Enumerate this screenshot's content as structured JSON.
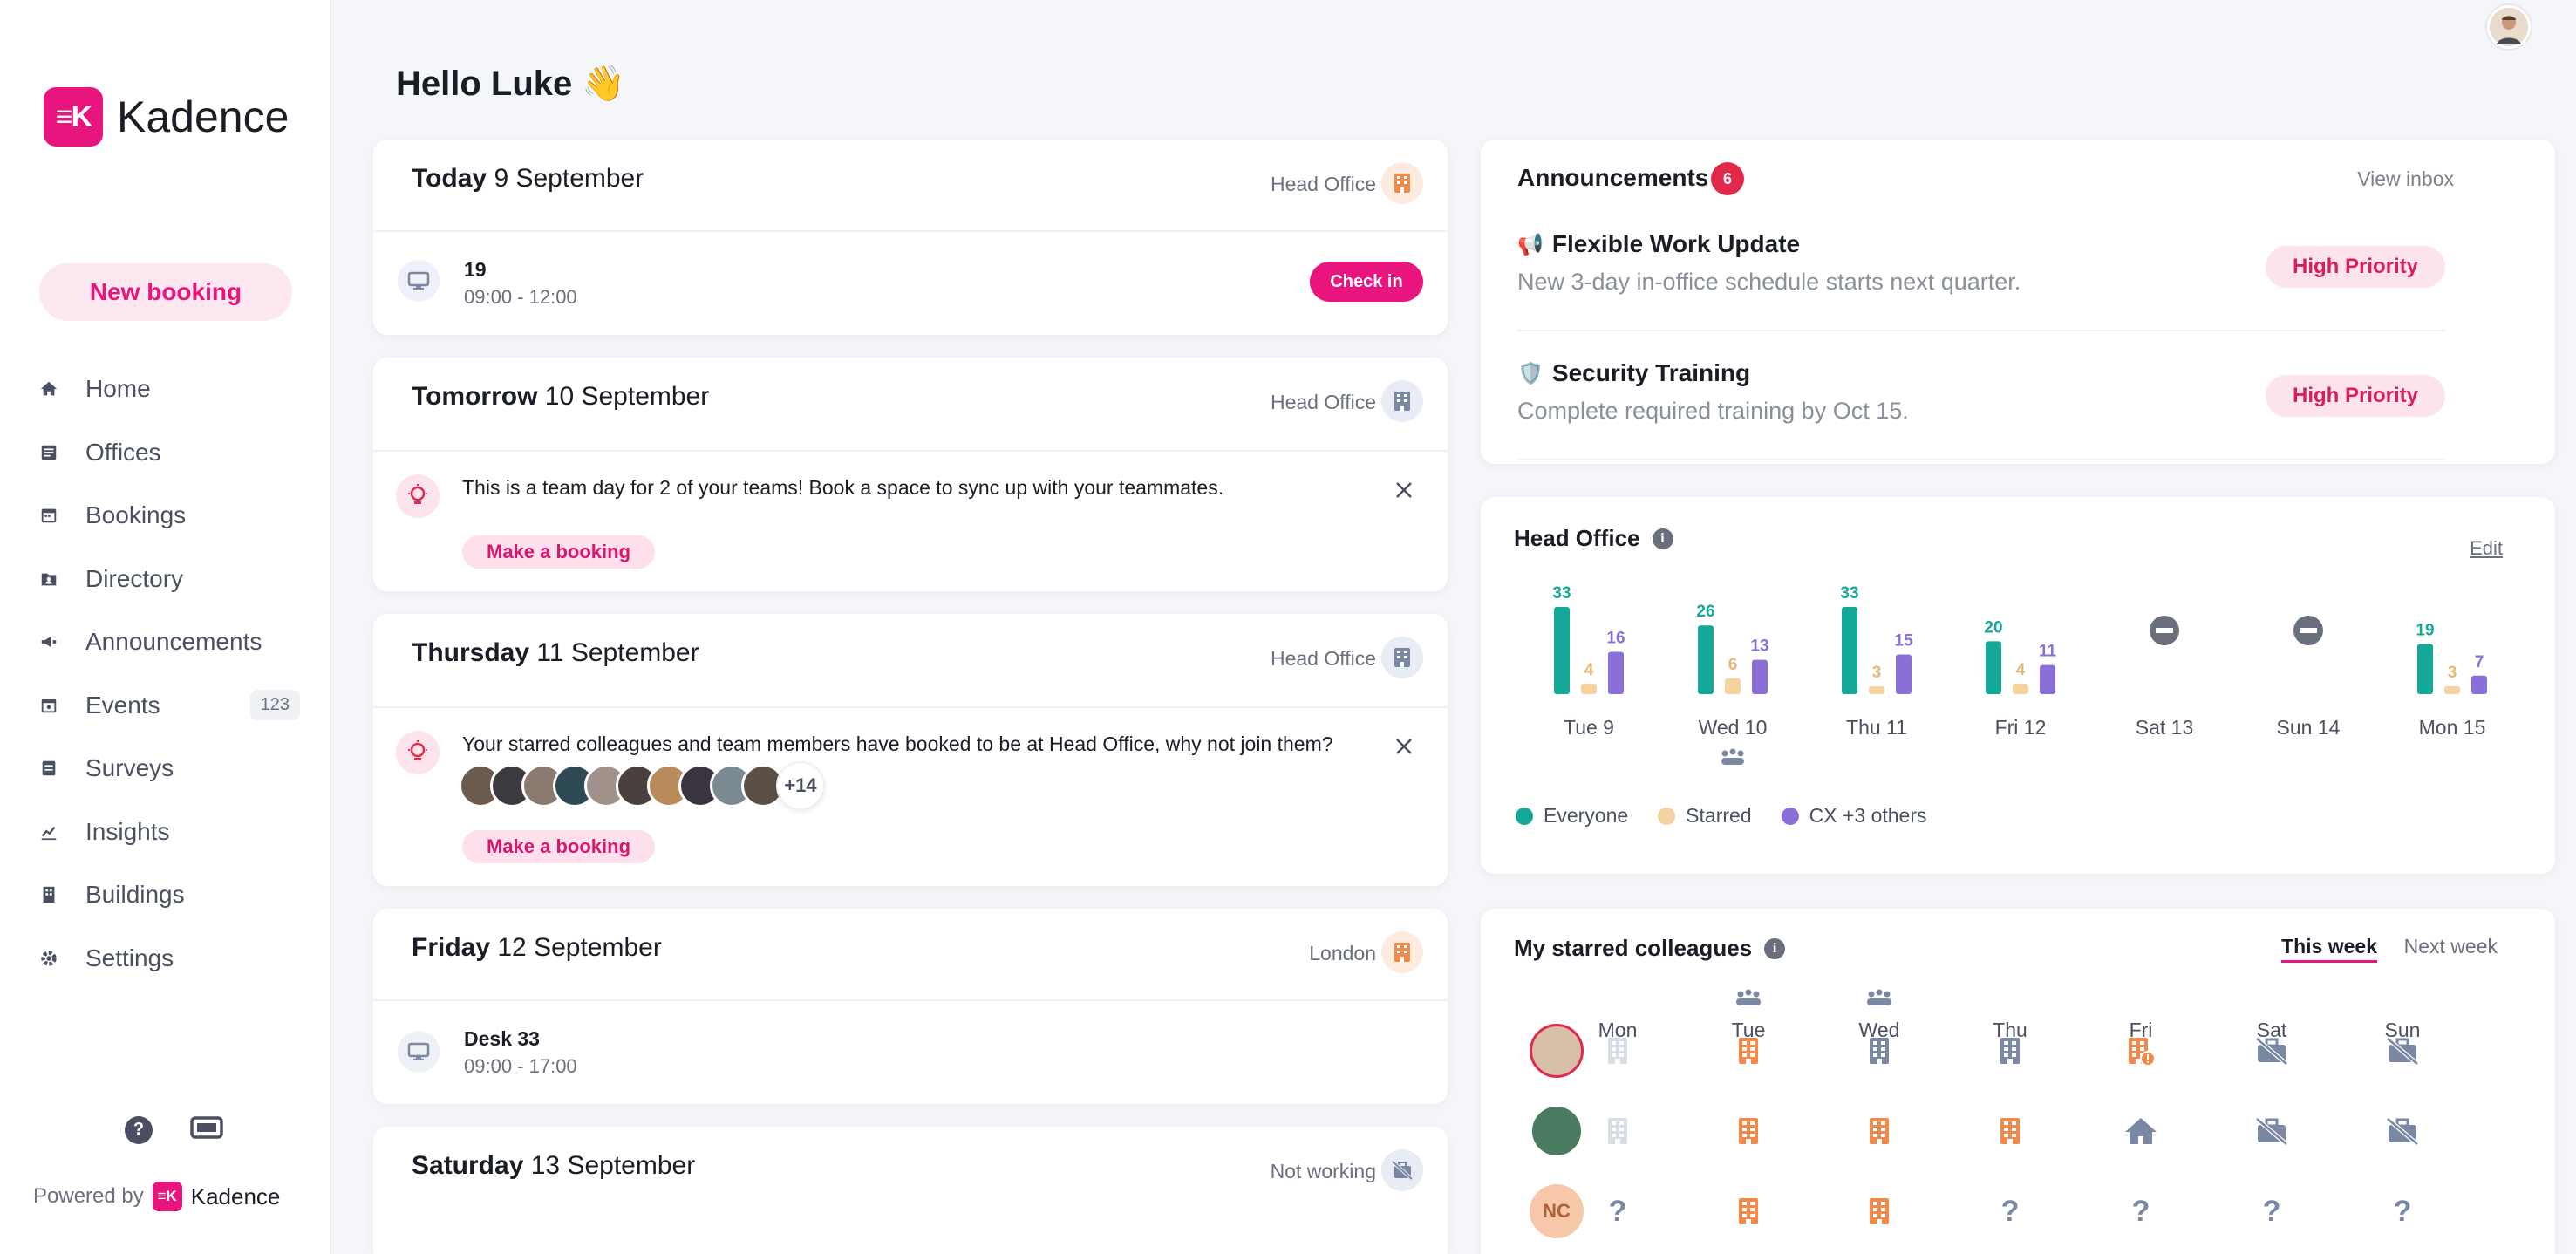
{
  "brand": {
    "logo_mark": "≡K",
    "name": "Kadence",
    "accent": "#e8157e"
  },
  "sidebar": {
    "new_booking": "New booking",
    "items": [
      {
        "label": "Home",
        "icon": "home-icon"
      },
      {
        "label": "Offices",
        "icon": "offices-icon"
      },
      {
        "label": "Bookings",
        "icon": "calendar-icon"
      },
      {
        "label": "Directory",
        "icon": "directory-icon"
      },
      {
        "label": "Announcements",
        "icon": "megaphone-icon"
      },
      {
        "label": "Events",
        "icon": "events-icon",
        "badge": "123"
      },
      {
        "label": "Surveys",
        "icon": "survey-icon"
      },
      {
        "label": "Insights",
        "icon": "chart-icon"
      },
      {
        "label": "Buildings",
        "icon": "building-icon"
      },
      {
        "label": "Settings",
        "icon": "gear-icon"
      }
    ],
    "help": "?",
    "powered_by": "Powered by",
    "powered_brand": "Kadence"
  },
  "header": {
    "greeting": "Hello Luke 👋"
  },
  "days": [
    {
      "day": "Today",
      "date": "9 September",
      "location": "Head Office",
      "loc_color": "orange",
      "booking": {
        "title": "19",
        "time": "09:00 - 12:00",
        "action": "Check in"
      }
    },
    {
      "day": "Tomorrow",
      "date": "10 September",
      "location": "Head Office",
      "loc_color": "blue",
      "message": "This is a team day for 2 of your teams! Book a space to sync up with your teammates.",
      "action": "Make a booking"
    },
    {
      "day": "Thursday",
      "date": "11 September",
      "location": "Head Office",
      "loc_color": "blue",
      "message": "Your starred colleagues and team members have booked to be at Head Office, why not join them?",
      "more_count": "+14",
      "action": "Make a booking"
    },
    {
      "day": "Friday",
      "date": "12 September",
      "location": "London",
      "loc_color": "orange",
      "booking": {
        "title": "Desk 33",
        "time": "09:00 - 17:00"
      }
    },
    {
      "day": "Saturday",
      "date": "13 September",
      "location": "Not working",
      "loc_color": "blue"
    }
  ],
  "announcements": {
    "title": "Announcements",
    "count": "6",
    "view_inbox": "View inbox",
    "items": [
      {
        "emoji": "📢",
        "title": "Flexible Work Update",
        "subtitle": "New 3-day in-office schedule starts next quarter.",
        "tag": "High Priority"
      },
      {
        "emoji": "🛡️",
        "title": "Security Training",
        "subtitle": "Complete required training by Oct 15.",
        "tag": "High Priority"
      }
    ]
  },
  "head_office": {
    "title": "Head Office",
    "info": "i",
    "edit": "Edit"
  },
  "chart_data": {
    "type": "bar",
    "categories": [
      "Tue 9",
      "Wed 10",
      "Thu 11",
      "Fri 12",
      "Sat 13",
      "Sun 14",
      "Mon 15"
    ],
    "series": [
      {
        "name": "Everyone",
        "color": "#14a899",
        "values": [
          33,
          26,
          33,
          20,
          null,
          null,
          19
        ]
      },
      {
        "name": "Starred",
        "color": "#f5d3a0",
        "values": [
          4,
          6,
          3,
          4,
          null,
          null,
          3
        ]
      },
      {
        "name": "CX +3 others",
        "color": "#8b6fd8",
        "values": [
          16,
          13,
          15,
          11,
          null,
          null,
          7
        ]
      }
    ],
    "closed_days": [
      "Sat 13",
      "Sun 14"
    ],
    "team_day": "Wed 10",
    "ylim": [
      0,
      33
    ],
    "legend_position": "bottom-left"
  },
  "starred": {
    "title": "My starred colleagues",
    "info": "i",
    "this_week": "This week",
    "next_week": "Next week",
    "days": [
      "Mon",
      "Tue",
      "Wed",
      "Thu",
      "Fri",
      "Sat",
      "Sun"
    ],
    "team_days": [
      "Tue",
      "Wed"
    ],
    "rows": [
      {
        "avatar": "avatar-1",
        "cells": [
          "office-light",
          "office-orange",
          "office-blue",
          "office-blue",
          "office-orange-alert",
          "not-working",
          "not-working"
        ]
      },
      {
        "avatar": "avatar-2",
        "cells": [
          "office-light",
          "office-orange",
          "office-orange",
          "office-orange",
          "home",
          "not-working",
          "not-working"
        ]
      },
      {
        "avatar": "NC",
        "cells": [
          "unknown",
          "office-orange",
          "office-orange",
          "unknown",
          "unknown",
          "unknown",
          "unknown"
        ]
      }
    ]
  }
}
